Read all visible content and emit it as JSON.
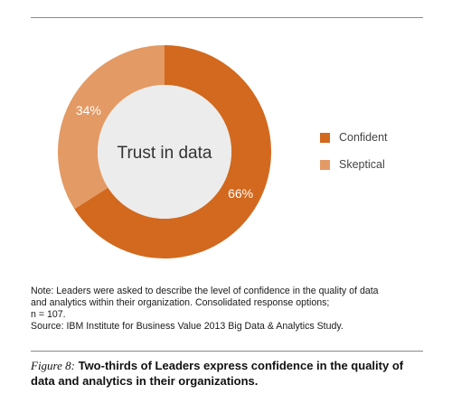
{
  "chart_data": {
    "type": "pie",
    "center_label": "Trust in data",
    "categories": [
      "Confident",
      "Skeptical"
    ],
    "values": [
      66,
      34
    ],
    "value_labels": [
      "66%",
      "34%"
    ],
    "colors": [
      "#d2691e",
      "#e39a64"
    ],
    "legend_position": "right"
  },
  "note": {
    "lines": [
      "Note: Leaders were asked to describe the level of confidence in the quality of data",
      "and analytics within their organization. Consolidated response options;",
      "n = 107.",
      "Source: IBM Institute for Business Value 2013 Big Data & Analytics Study."
    ]
  },
  "caption": {
    "prefix": "Figure 8:",
    "text": " Two-thirds of Leaders express confidence in the quality of data and analytics in their organizations."
  }
}
